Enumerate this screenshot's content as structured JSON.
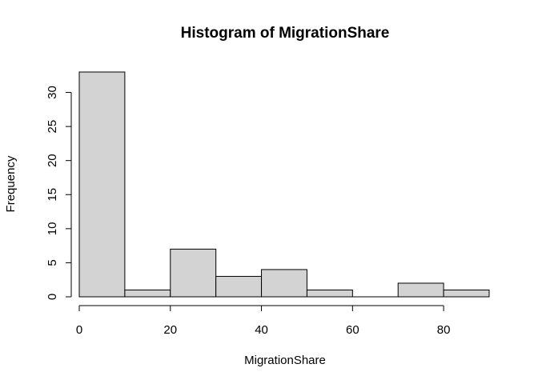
{
  "chart_data": {
    "type": "bar",
    "title": "Histogram of MigrationShare",
    "xlabel": "MigrationShare",
    "ylabel": "Frequency",
    "bin_edges": [
      0,
      10,
      20,
      30,
      40,
      50,
      60,
      70,
      80,
      90
    ],
    "values": [
      33,
      1,
      7,
      3,
      4,
      1,
      0,
      2,
      1
    ],
    "xlim": [
      0,
      90
    ],
    "ylim": [
      0,
      33
    ],
    "x_ticks": [
      0,
      20,
      40,
      60,
      80
    ],
    "y_ticks": [
      0,
      5,
      10,
      15,
      20,
      25,
      30
    ],
    "bar_color": "#d3d3d3",
    "grid": false
  }
}
